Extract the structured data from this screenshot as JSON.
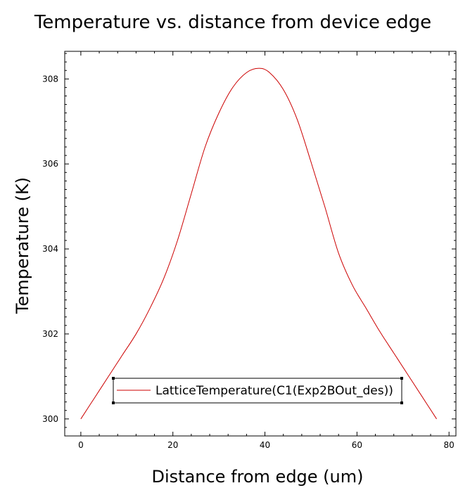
{
  "chart_data": {
    "type": "line",
    "title": "Temperature vs. distance from device edge",
    "xlabel": "Distance from edge (um)",
    "ylabel": "Temperature (K)",
    "xlim": [
      -3.5,
      81.5
    ],
    "ylim": [
      299.6,
      308.65
    ],
    "xticks": [
      0,
      20,
      40,
      60,
      80
    ],
    "xtick_labels": [
      "0",
      "20",
      "40",
      "60",
      "80"
    ],
    "yticks": [
      300,
      302,
      304,
      306,
      308
    ],
    "ytick_labels": [
      "300",
      "302",
      "304",
      "306",
      "308"
    ],
    "grid": false,
    "legend_position": "bottom-center",
    "series": [
      {
        "name": "LatticeTemperature(C1(Exp2BOut_des))",
        "color": "#cc0000",
        "x": [
          0,
          3,
          6,
          9,
          12,
          15,
          18,
          21,
          24,
          27,
          30,
          33,
          36,
          38.7,
          41,
          44,
          47,
          50,
          53,
          56,
          59,
          62,
          65,
          68,
          71,
          74,
          77.3
        ],
        "y": [
          300.0,
          300.5,
          301.0,
          301.5,
          302.0,
          302.6,
          303.3,
          304.2,
          305.3,
          306.4,
          307.2,
          307.8,
          308.15,
          308.25,
          308.15,
          307.75,
          307.05,
          306.05,
          305.0,
          303.9,
          303.15,
          302.6,
          302.05,
          301.55,
          301.05,
          300.55,
          300.0
        ]
      }
    ]
  }
}
